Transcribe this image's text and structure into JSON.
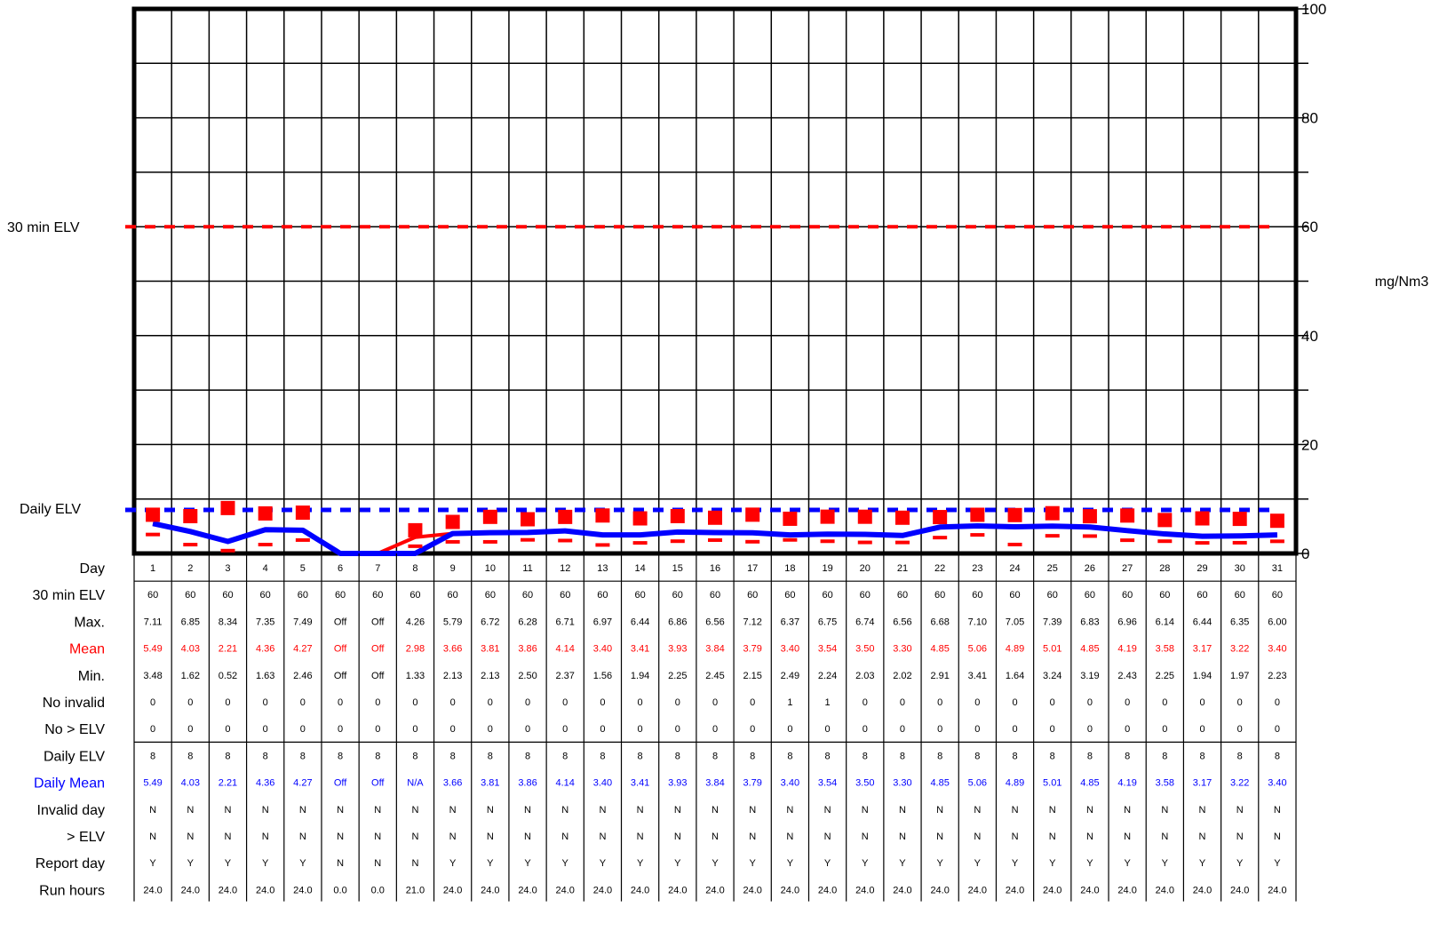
{
  "chart_data": {
    "type": "line",
    "ylabel": "mg/Nm3",
    "ylim": [
      0,
      100
    ],
    "y_ticks": [
      "0",
      "20",
      "40",
      "60",
      "80",
      "100"
    ],
    "thirty_min_elv_label": "30 min ELV",
    "daily_elv_label": "Daily ELV",
    "thirty_min_elv": 60,
    "daily_elv": 8,
    "days": [
      1,
      2,
      3,
      4,
      5,
      6,
      7,
      8,
      9,
      10,
      11,
      12,
      13,
      14,
      15,
      16,
      17,
      18,
      19,
      20,
      21,
      22,
      23,
      24,
      25,
      26,
      27,
      28,
      29,
      30,
      31
    ],
    "max": [
      7.11,
      6.85,
      8.34,
      7.35,
      7.49,
      null,
      null,
      4.26,
      5.79,
      6.72,
      6.28,
      6.71,
      6.97,
      6.44,
      6.86,
      6.56,
      7.12,
      6.37,
      6.75,
      6.74,
      6.56,
      6.68,
      7.1,
      7.05,
      7.39,
      6.83,
      6.96,
      6.14,
      6.44,
      6.35,
      6.0
    ],
    "mean": [
      5.49,
      4.03,
      2.21,
      4.36,
      4.27,
      null,
      null,
      2.98,
      3.66,
      3.81,
      3.86,
      4.14,
      3.4,
      3.41,
      3.93,
      3.84,
      3.79,
      3.4,
      3.54,
      3.5,
      3.3,
      4.85,
      5.06,
      4.89,
      5.01,
      4.85,
      4.19,
      3.58,
      3.17,
      3.22,
      3.4
    ],
    "min": [
      3.48,
      1.62,
      0.52,
      1.63,
      2.46,
      null,
      null,
      1.33,
      2.13,
      2.13,
      2.5,
      2.37,
      1.56,
      1.94,
      2.25,
      2.45,
      2.15,
      2.49,
      2.24,
      2.03,
      2.02,
      2.91,
      3.41,
      1.64,
      3.24,
      3.19,
      2.43,
      2.25,
      1.94,
      1.97,
      2.23
    ],
    "daily_mean": [
      5.49,
      4.03,
      2.21,
      4.36,
      4.27,
      0,
      0,
      0,
      3.66,
      3.81,
      3.86,
      4.14,
      3.4,
      3.41,
      3.93,
      3.84,
      3.79,
      3.4,
      3.54,
      3.5,
      3.3,
      4.85,
      5.06,
      4.89,
      5.01,
      4.85,
      4.19,
      3.58,
      3.17,
      3.22,
      3.4
    ],
    "mean_line": [
      5.49,
      4.03,
      2.21,
      4.36,
      4.27,
      0,
      0,
      2.98,
      3.66,
      3.81,
      3.86,
      4.14,
      3.4,
      3.41,
      3.93,
      3.84,
      3.79,
      3.4,
      3.54,
      3.5,
      3.3,
      4.85,
      5.06,
      4.89,
      5.01,
      4.85,
      4.19,
      3.58,
      3.17,
      3.22,
      3.4
    ],
    "colors": {
      "max": "#ff0000",
      "mean": "#ff0000",
      "min": "#ff0000",
      "daily_mean": "#0000ff",
      "thirty_min_elv": "#ff0000",
      "daily_elv": "#0000ff"
    },
    "table": [
      {
        "label": "Day",
        "color": "#000000",
        "values": [
          "1",
          "2",
          "3",
          "4",
          "5",
          "6",
          "7",
          "8",
          "9",
          "10",
          "11",
          "12",
          "13",
          "14",
          "15",
          "16",
          "17",
          "18",
          "19",
          "20",
          "21",
          "22",
          "23",
          "24",
          "25",
          "26",
          "27",
          "28",
          "29",
          "30",
          "31"
        ]
      },
      {
        "label": "30 min ELV",
        "color": "#000000",
        "values": [
          "60",
          "60",
          "60",
          "60",
          "60",
          "60",
          "60",
          "60",
          "60",
          "60",
          "60",
          "60",
          "60",
          "60",
          "60",
          "60",
          "60",
          "60",
          "60",
          "60",
          "60",
          "60",
          "60",
          "60",
          "60",
          "60",
          "60",
          "60",
          "60",
          "60",
          "60"
        ]
      },
      {
        "label": "Max.",
        "color": "#000000",
        "values": [
          "7.11",
          "6.85",
          "8.34",
          "7.35",
          "7.49",
          "Off",
          "Off",
          "4.26",
          "5.79",
          "6.72",
          "6.28",
          "6.71",
          "6.97",
          "6.44",
          "6.86",
          "6.56",
          "7.12",
          "6.37",
          "6.75",
          "6.74",
          "6.56",
          "6.68",
          "7.10",
          "7.05",
          "7.39",
          "6.83",
          "6.96",
          "6.14",
          "6.44",
          "6.35",
          "6.00"
        ]
      },
      {
        "label": "Mean",
        "color": "#ff0000",
        "values": [
          "5.49",
          "4.03",
          "2.21",
          "4.36",
          "4.27",
          "Off",
          "Off",
          "2.98",
          "3.66",
          "3.81",
          "3.86",
          "4.14",
          "3.40",
          "3.41",
          "3.93",
          "3.84",
          "3.79",
          "3.40",
          "3.54",
          "3.50",
          "3.30",
          "4.85",
          "5.06",
          "4.89",
          "5.01",
          "4.85",
          "4.19",
          "3.58",
          "3.17",
          "3.22",
          "3.40"
        ]
      },
      {
        "label": "Min.",
        "color": "#000000",
        "values": [
          "3.48",
          "1.62",
          "0.52",
          "1.63",
          "2.46",
          "Off",
          "Off",
          "1.33",
          "2.13",
          "2.13",
          "2.50",
          "2.37",
          "1.56",
          "1.94",
          "2.25",
          "2.45",
          "2.15",
          "2.49",
          "2.24",
          "2.03",
          "2.02",
          "2.91",
          "3.41",
          "1.64",
          "3.24",
          "3.19",
          "2.43",
          "2.25",
          "1.94",
          "1.97",
          "2.23"
        ]
      },
      {
        "label": "No invalid",
        "color": "#000000",
        "values": [
          "0",
          "0",
          "0",
          "0",
          "0",
          "0",
          "0",
          "0",
          "0",
          "0",
          "0",
          "0",
          "0",
          "0",
          "0",
          "0",
          "0",
          "1",
          "1",
          "0",
          "0",
          "0",
          "0",
          "0",
          "0",
          "0",
          "0",
          "0",
          "0",
          "0",
          "0"
        ]
      },
      {
        "label": "No > ELV",
        "color": "#000000",
        "values": [
          "0",
          "0",
          "0",
          "0",
          "0",
          "0",
          "0",
          "0",
          "0",
          "0",
          "0",
          "0",
          "0",
          "0",
          "0",
          "0",
          "0",
          "0",
          "0",
          "0",
          "0",
          "0",
          "0",
          "0",
          "0",
          "0",
          "0",
          "0",
          "0",
          "0",
          "0"
        ]
      },
      {
        "label": "Daily ELV",
        "color": "#000000",
        "values": [
          "8",
          "8",
          "8",
          "8",
          "8",
          "8",
          "8",
          "8",
          "8",
          "8",
          "8",
          "8",
          "8",
          "8",
          "8",
          "8",
          "8",
          "8",
          "8",
          "8",
          "8",
          "8",
          "8",
          "8",
          "8",
          "8",
          "8",
          "8",
          "8",
          "8",
          "8"
        ]
      },
      {
        "label": "Daily Mean",
        "color": "#0000ff",
        "values": [
          "5.49",
          "4.03",
          "2.21",
          "4.36",
          "4.27",
          "Off",
          "Off",
          "N/A",
          "3.66",
          "3.81",
          "3.86",
          "4.14",
          "3.40",
          "3.41",
          "3.93",
          "3.84",
          "3.79",
          "3.40",
          "3.54",
          "3.50",
          "3.30",
          "4.85",
          "5.06",
          "4.89",
          "5.01",
          "4.85",
          "4.19",
          "3.58",
          "3.17",
          "3.22",
          "3.40"
        ]
      },
      {
        "label": "Invalid day",
        "color": "#000000",
        "values": [
          "N",
          "N",
          "N",
          "N",
          "N",
          "N",
          "N",
          "N",
          "N",
          "N",
          "N",
          "N",
          "N",
          "N",
          "N",
          "N",
          "N",
          "N",
          "N",
          "N",
          "N",
          "N",
          "N",
          "N",
          "N",
          "N",
          "N",
          "N",
          "N",
          "N",
          "N"
        ]
      },
      {
        "label": "> ELV",
        "color": "#000000",
        "values": [
          "N",
          "N",
          "N",
          "N",
          "N",
          "N",
          "N",
          "N",
          "N",
          "N",
          "N",
          "N",
          "N",
          "N",
          "N",
          "N",
          "N",
          "N",
          "N",
          "N",
          "N",
          "N",
          "N",
          "N",
          "N",
          "N",
          "N",
          "N",
          "N",
          "N",
          "N"
        ]
      },
      {
        "label": "Report day",
        "color": "#000000",
        "values": [
          "Y",
          "Y",
          "Y",
          "Y",
          "Y",
          "N",
          "N",
          "N",
          "Y",
          "Y",
          "Y",
          "Y",
          "Y",
          "Y",
          "Y",
          "Y",
          "Y",
          "Y",
          "Y",
          "Y",
          "Y",
          "Y",
          "Y",
          "Y",
          "Y",
          "Y",
          "Y",
          "Y",
          "Y",
          "Y",
          "Y"
        ]
      },
      {
        "label": "Run hours",
        "color": "#000000",
        "values": [
          "24.0",
          "24.0",
          "24.0",
          "24.0",
          "24.0",
          "0.0",
          "0.0",
          "21.0",
          "24.0",
          "24.0",
          "24.0",
          "24.0",
          "24.0",
          "24.0",
          "24.0",
          "24.0",
          "24.0",
          "24.0",
          "24.0",
          "24.0",
          "24.0",
          "24.0",
          "24.0",
          "24.0",
          "24.0",
          "24.0",
          "24.0",
          "24.0",
          "24.0",
          "24.0",
          "24.0"
        ]
      }
    ]
  }
}
